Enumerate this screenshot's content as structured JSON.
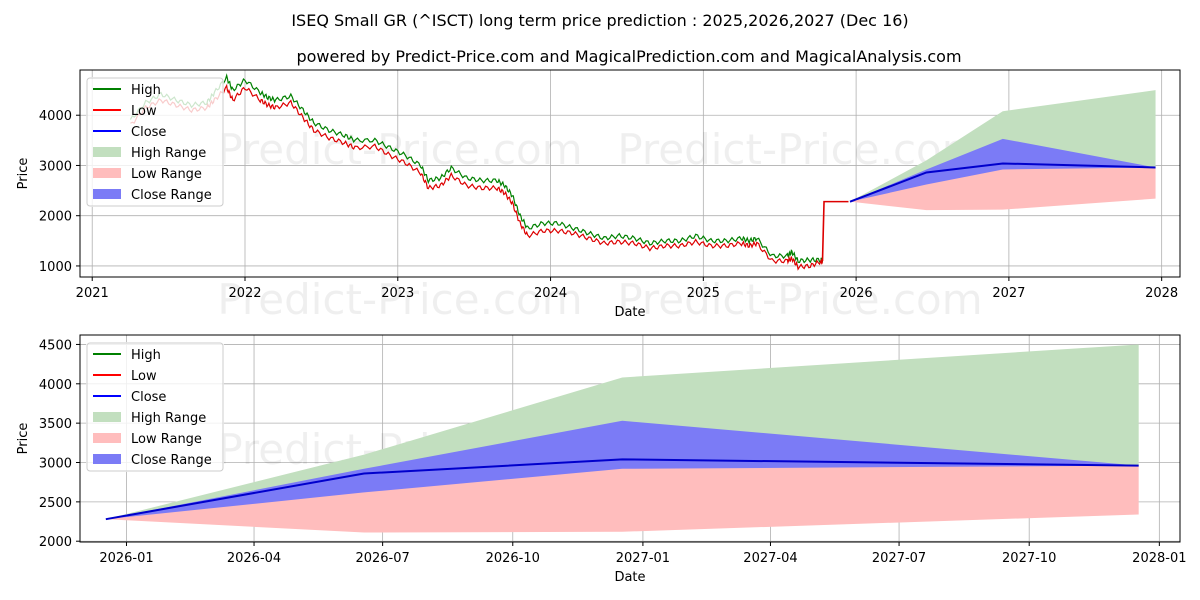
{
  "chart_data": [
    {
      "type": "line",
      "title": "ISEQ Small GR (^ISCT) long term price prediction : 2025,2026,2027 (Dec 16)",
      "subtitle": "powered by Predict-Price.com and MagicalPrediction.com and MagicalAnalysis.com",
      "xlabel": "Date",
      "ylabel": "Price",
      "xlim": [
        2020.92,
        2028.12
      ],
      "ylim": [
        780,
        4900
      ],
      "grid": true,
      "legend_location": "top-left",
      "watermarks": [
        "Predict-Price.com",
        "Predict-Price.com",
        "Predict-Price.com",
        "Predict-Price.com"
      ],
      "x_ticks": [
        {
          "value": 2021,
          "label": "2021"
        },
        {
          "value": 2022,
          "label": "2022"
        },
        {
          "value": 2023,
          "label": "2023"
        },
        {
          "value": 2024,
          "label": "2024"
        },
        {
          "value": 2025,
          "label": "2025"
        },
        {
          "value": 2026,
          "label": "2026"
        },
        {
          "value": 2027,
          "label": "2027"
        },
        {
          "value": 2028,
          "label": "2028"
        }
      ],
      "y_ticks": [
        {
          "value": 1000,
          "label": "1000"
        },
        {
          "value": 2000,
          "label": "2000"
        },
        {
          "value": 3000,
          "label": "3000"
        },
        {
          "value": 4000,
          "label": "4000"
        }
      ],
      "legend": [
        {
          "label": "High",
          "kind": "line",
          "color": "#008000"
        },
        {
          "label": "Low",
          "kind": "line",
          "color": "#ff0000"
        },
        {
          "label": "Close",
          "kind": "line",
          "color": "#0000ff"
        },
        {
          "label": "High Range",
          "kind": "patch",
          "color": "#c2dfbf"
        },
        {
          "label": "Low Range",
          "kind": "patch",
          "color": "#ffbdbd"
        },
        {
          "label": "Close Range",
          "kind": "patch",
          "color": "#7b7bf6"
        }
      ],
      "history_series": {
        "name": "price history",
        "x": [
          2021.25,
          2021.35,
          2021.45,
          2021.55,
          2021.65,
          2021.75,
          2021.8,
          2021.88,
          2021.92,
          2022.0,
          2022.1,
          2022.15,
          2022.2,
          2022.3,
          2022.38,
          2022.45,
          2022.55,
          2022.65,
          2022.72,
          2022.85,
          2022.95,
          2023.05,
          2023.15,
          2023.2,
          2023.28,
          2023.35,
          2023.45,
          2023.55,
          2023.65,
          2023.7,
          2023.75,
          2023.8,
          2023.85,
          2023.95,
          2024.05,
          2024.15,
          2024.25,
          2024.35,
          2024.45,
          2024.55,
          2024.65,
          2024.75,
          2024.85,
          2024.95,
          2025.05,
          2025.15,
          2025.25,
          2025.3,
          2025.35,
          2025.45,
          2025.55,
          2025.58,
          2025.62,
          2025.7,
          2025.77,
          2025.78
        ],
        "high": [
          3900,
          4250,
          4420,
          4300,
          4200,
          4250,
          4450,
          4750,
          4500,
          4700,
          4450,
          4350,
          4300,
          4380,
          4100,
          3850,
          3700,
          3600,
          3500,
          3500,
          3350,
          3200,
          3000,
          2700,
          2750,
          2950,
          2750,
          2700,
          2700,
          2600,
          2400,
          2000,
          1750,
          1850,
          1850,
          1750,
          1650,
          1550,
          1600,
          1550,
          1450,
          1500,
          1500,
          1600,
          1500,
          1500,
          1550,
          1500,
          1550,
          1200,
          1200,
          1280,
          1100,
          1120,
          1120,
          1120
        ],
        "low": [
          3800,
          4150,
          4300,
          4200,
          4100,
          4150,
          4300,
          4550,
          4300,
          4550,
          4300,
          4200,
          4150,
          4250,
          3950,
          3700,
          3550,
          3450,
          3350,
          3380,
          3200,
          3050,
          2850,
          2550,
          2600,
          2800,
          2600,
          2550,
          2550,
          2450,
          2250,
          1850,
          1600,
          1700,
          1700,
          1650,
          1550,
          1450,
          1480,
          1450,
          1350,
          1400,
          1400,
          1480,
          1400,
          1400,
          1450,
          1400,
          1450,
          1100,
          1100,
          1150,
          980,
          1000,
          1090,
          1090
        ]
      },
      "jump_series": {
        "x": [
          2025.78,
          2025.79,
          2025.95
        ],
        "values": [
          1100,
          2280,
          2280
        ]
      },
      "forecast": {
        "x": [
          2025.96,
          2026.46,
          2026.96,
          2027.96
        ],
        "close": [
          2280,
          2860,
          3040,
          2960
        ],
        "close_range_low": [
          2280,
          2620,
          2920,
          2960
        ],
        "close_range_high": [
          2280,
          2920,
          3530,
          2960
        ],
        "high_range_top": [
          2280,
          3100,
          4080,
          4500
        ],
        "low_range_bottom": [
          2280,
          2110,
          2120,
          2340
        ]
      }
    },
    {
      "type": "area",
      "title": "",
      "xlabel": "Date",
      "ylabel": "Price",
      "xlim": [
        2025.91,
        2028.04
      ],
      "ylim": [
        1990,
        4620
      ],
      "grid": true,
      "legend_location": "top-left",
      "watermarks": [
        "Predict-Price.com",
        "Predict-Price.com"
      ],
      "x_ticks": [
        {
          "value": 2026.0,
          "label": "2026-01"
        },
        {
          "value": 2026.247,
          "label": "2026-04"
        },
        {
          "value": 2026.496,
          "label": "2026-07"
        },
        {
          "value": 2026.748,
          "label": "2026-10"
        },
        {
          "value": 2027.0,
          "label": "2027-01"
        },
        {
          "value": 2027.247,
          "label": "2027-04"
        },
        {
          "value": 2027.496,
          "label": "2027-07"
        },
        {
          "value": 2027.748,
          "label": "2027-10"
        },
        {
          "value": 2028.0,
          "label": "2028-01"
        }
      ],
      "y_ticks": [
        {
          "value": 2000,
          "label": "2000"
        },
        {
          "value": 2500,
          "label": "2500"
        },
        {
          "value": 3000,
          "label": "3000"
        },
        {
          "value": 3500,
          "label": "3500"
        },
        {
          "value": 4000,
          "label": "4000"
        },
        {
          "value": 4500,
          "label": "4500"
        }
      ],
      "legend": [
        {
          "label": "High",
          "kind": "line",
          "color": "#008000"
        },
        {
          "label": "Low",
          "kind": "line",
          "color": "#ff0000"
        },
        {
          "label": "Close",
          "kind": "line",
          "color": "#0000ff"
        },
        {
          "label": "High Range",
          "kind": "patch",
          "color": "#c2dfbf"
        },
        {
          "label": "Low Range",
          "kind": "patch",
          "color": "#ffbdbd"
        },
        {
          "label": "Close Range",
          "kind": "patch",
          "color": "#7b7bf6"
        }
      ],
      "forecast": {
        "x": [
          2025.96,
          2026.46,
          2026.96,
          2027.96
        ],
        "close": [
          2280,
          2860,
          3040,
          2960
        ],
        "close_range_low": [
          2280,
          2620,
          2920,
          2960
        ],
        "close_range_high": [
          2280,
          2920,
          3530,
          2960
        ],
        "high_range_top": [
          2280,
          3100,
          4080,
          4500
        ],
        "low_range_bottom": [
          2280,
          2110,
          2120,
          2340
        ]
      }
    }
  ]
}
